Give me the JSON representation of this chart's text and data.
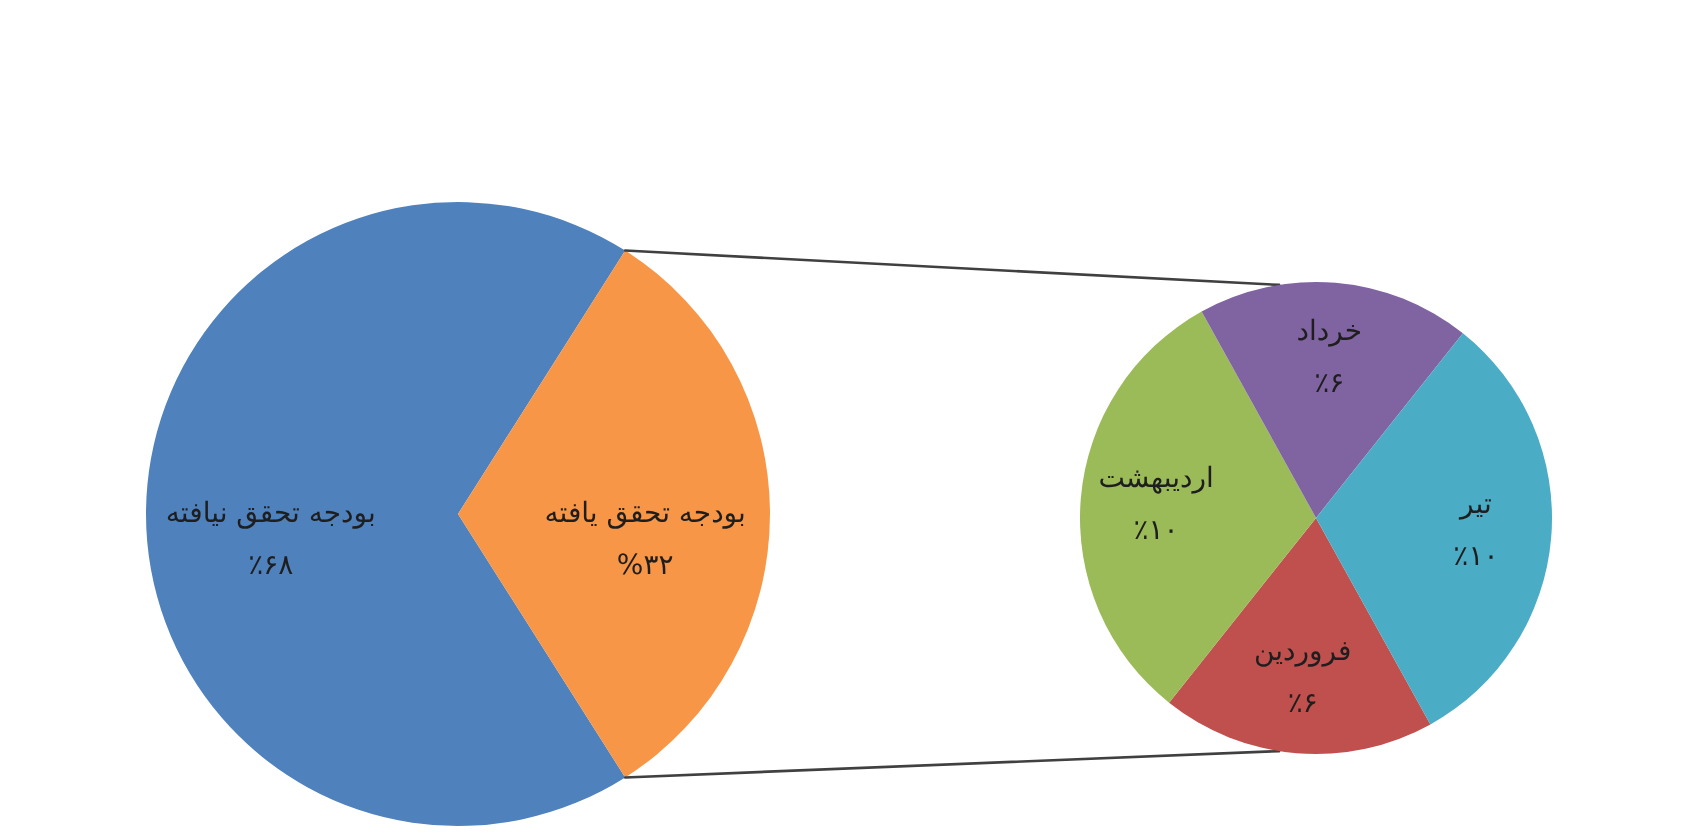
{
  "chart_data": [
    {
      "type": "pie",
      "categories": [
        "بودجه تحقق نیافته",
        "بودجه تحقق یافته"
      ],
      "values": [
        68,
        32
      ],
      "colors": [
        "#4f81bd",
        "#f79646"
      ],
      "value_labels": [
        "٪۶۸",
        "%۳۲"
      ]
    },
    {
      "type": "pie",
      "categories": [
        "فروردین",
        "اردیبهشت",
        "خرداد",
        "تیر"
      ],
      "values": [
        6,
        10,
        6,
        10
      ],
      "colors": [
        "#c0504d",
        "#9bbb59",
        "#8064a2",
        "#4bacc6"
      ],
      "value_labels": [
        "٪۶",
        "٪۱۰",
        "٪۶",
        "٪۱۰"
      ]
    }
  ]
}
